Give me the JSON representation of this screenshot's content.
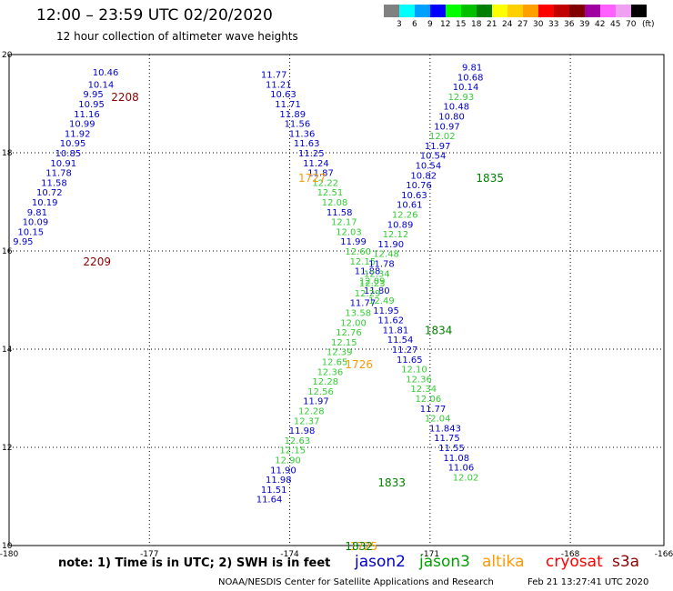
{
  "title": "12:00 – 23:59 UTC 02/20/2020",
  "subtitle": "12 hour collection of altimeter wave heights",
  "legend": {
    "units": "(ft)",
    "labels": [
      "3",
      "6",
      "9",
      "12",
      "15",
      "18",
      "21",
      "24",
      "27",
      "30",
      "33",
      "36",
      "39",
      "42",
      "45",
      "70"
    ],
    "colors": [
      "#808080",
      "#00ffff",
      "#00a0ff",
      "#0000ff",
      "#00ff00",
      "#00c000",
      "#008000",
      "#ffff00",
      "#ffd000",
      "#ffa000",
      "#ff0000",
      "#c00000",
      "#800000",
      "#a000a0",
      "#ff60ff",
      "#f0a0f0",
      "#000000"
    ]
  },
  "satellites": [
    {
      "name": "jason2",
      "color": "#0000c8"
    },
    {
      "name": "jason3",
      "color": "#00a000"
    },
    {
      "name": "altika",
      "color": "#ff9900"
    },
    {
      "name": "cryosat",
      "color": "#ff0000"
    },
    {
      "name": "s3a",
      "color": "#8b0000"
    }
  ],
  "footer": {
    "note": "note: 1) Time is in UTC; 2) SWH is in feet",
    "credit": "NOAA/NESDIS Center for Satellite Applications and Research",
    "date": "Feb 21 13:27:41 UTC 2020"
  },
  "chart_data": {
    "type": "scatter",
    "xlim": [
      -180,
      -166
    ],
    "ylim": [
      10,
      20
    ],
    "x_ticks": [
      "-180",
      "-177",
      "-174",
      "-171",
      "-168",
      "-166"
    ],
    "y_ticks": [
      "20",
      "18",
      "16",
      "14",
      "12",
      "10"
    ],
    "grid": true,
    "passes": [
      {
        "id": "2208",
        "satellite": "s3a",
        "color": "#8b0000",
        "label_x": -178.4,
        "label_y": 19.15
      },
      {
        "id": "2209",
        "satellite": "s3a",
        "color": "#8b0000",
        "label_x": -179.0,
        "label_y": 15.8
      },
      {
        "id": "1727",
        "satellite": "altika",
        "color": "#ff9900",
        "label_x": -174.4,
        "label_y": 17.5
      },
      {
        "id": "1726",
        "satellite": "altika",
        "color": "#ff9900",
        "label_x": -173.4,
        "label_y": 13.7
      },
      {
        "id": "1725",
        "satellite": "altika",
        "color": "#ff9900",
        "label_x": -173.3,
        "label_y": 10.0
      },
      {
        "id": "1835",
        "satellite": "jason3",
        "color": "#008000",
        "label_x": -170.6,
        "label_y": 17.5
      },
      {
        "id": "1834",
        "satellite": "jason3",
        "color": "#008000",
        "label_x": -171.7,
        "label_y": 14.4
      },
      {
        "id": "1833",
        "satellite": "jason3",
        "color": "#008000",
        "label_x": -172.7,
        "label_y": 11.3
      },
      {
        "id": "1832",
        "satellite": "jason3",
        "color": "#008000",
        "label_x": -173.4,
        "label_y": 10.0
      }
    ],
    "series": [
      {
        "name": "2208/2209",
        "color": "#0000cd",
        "points": [
          [
            -178.8,
            19.65,
            "10.46"
          ],
          [
            -178.9,
            19.4,
            "10.14"
          ],
          [
            -179.0,
            19.2,
            "9.95"
          ],
          [
            -179.1,
            19.0,
            "10.95"
          ],
          [
            -179.2,
            18.8,
            "11.16"
          ],
          [
            -179.3,
            18.6,
            "10.99"
          ],
          [
            -179.4,
            18.4,
            "11.92"
          ],
          [
            -179.5,
            18.2,
            "10.95"
          ],
          [
            -179.6,
            18.0,
            "10.85"
          ],
          [
            -179.7,
            17.8,
            "10.91"
          ],
          [
            -179.8,
            17.6,
            "11.78"
          ],
          [
            -179.9,
            17.4,
            "11.58"
          ],
          [
            -180.0,
            17.2,
            "10.72"
          ],
          [
            -180.1,
            17.0,
            "10.19"
          ],
          [
            -180.2,
            16.8,
            "9.81"
          ],
          [
            -180.3,
            16.6,
            "10.09"
          ],
          [
            -180.4,
            16.4,
            "10.15"
          ],
          [
            -180.5,
            16.2,
            "9.95"
          ]
        ]
      },
      {
        "name": "1727/1726",
        "color": "#0000cd",
        "points": [
          [
            -175.2,
            19.6,
            "11.77"
          ],
          [
            -175.1,
            19.4,
            "11.21"
          ],
          [
            -175.0,
            19.2,
            "10.63"
          ],
          [
            -174.9,
            19.0,
            "11.71"
          ],
          [
            -174.8,
            18.8,
            "11.89"
          ],
          [
            -174.7,
            18.6,
            "11.56"
          ],
          [
            -174.6,
            18.4,
            "11.36"
          ],
          [
            -174.5,
            18.2,
            "11.63"
          ],
          [
            -174.4,
            18.0,
            "11.25"
          ],
          [
            -174.3,
            17.8,
            "11.24"
          ],
          [
            -174.2,
            17.6,
            "11.87"
          ],
          [
            -174.1,
            17.4,
            "12.22"
          ],
          [
            -174.0,
            17.2,
            "12.51"
          ],
          [
            -173.9,
            17.0,
            "12.08"
          ],
          [
            -173.8,
            16.8,
            "11.58"
          ],
          [
            -173.7,
            16.6,
            "12.17"
          ],
          [
            -173.6,
            16.4,
            "12.03"
          ],
          [
            -173.5,
            16.2,
            "11.99"
          ],
          [
            -173.4,
            16.0,
            "12.60"
          ],
          [
            -173.3,
            15.8,
            "12.15"
          ],
          [
            -173.2,
            15.6,
            "11.88"
          ],
          [
            -173.1,
            15.4,
            "12.09"
          ],
          [
            -173.0,
            15.2,
            "11.80"
          ],
          [
            -172.9,
            15.0,
            "12.49"
          ],
          [
            -172.8,
            14.8,
            "11.95"
          ],
          [
            -172.7,
            14.6,
            "11.62"
          ],
          [
            -172.6,
            14.4,
            "11.81"
          ],
          [
            -172.5,
            14.2,
            "11.54"
          ],
          [
            -172.4,
            14.0,
            "11.27"
          ],
          [
            -172.3,
            13.8,
            "11.65"
          ],
          [
            -172.2,
            13.6,
            "12.10"
          ],
          [
            -172.1,
            13.4,
            "12.36"
          ],
          [
            -172.0,
            13.2,
            "12.34"
          ],
          [
            -171.9,
            13.0,
            "12.06"
          ],
          [
            -171.8,
            12.8,
            "11.77"
          ],
          [
            -171.7,
            12.6,
            "12.04"
          ],
          [
            -171.6,
            12.4,
            "11.843"
          ],
          [
            -171.5,
            12.2,
            "11.75"
          ],
          [
            -171.4,
            12.0,
            "11.55"
          ],
          [
            -171.3,
            11.8,
            "11.08"
          ],
          [
            -171.2,
            11.6,
            "11.06"
          ],
          [
            -171.1,
            11.4,
            "12.02"
          ]
        ]
      },
      {
        "name": "1835/1834/1833",
        "color": "#0000cd",
        "points": [
          [
            -170.9,
            19.75,
            "9.81"
          ],
          [
            -171.0,
            19.55,
            "10.68"
          ],
          [
            -171.1,
            19.35,
            "10.14"
          ],
          [
            -171.2,
            19.15,
            "12.93"
          ],
          [
            -171.3,
            18.95,
            "10.48"
          ],
          [
            -171.4,
            18.75,
            "10.80"
          ],
          [
            -171.5,
            18.55,
            "10.97"
          ],
          [
            -171.6,
            18.35,
            "12.02"
          ],
          [
            -171.7,
            18.15,
            "11.97"
          ],
          [
            -171.8,
            17.95,
            "10.54"
          ],
          [
            -171.9,
            17.75,
            "10.54"
          ],
          [
            -172.0,
            17.55,
            "10.82"
          ],
          [
            -172.1,
            17.35,
            "10.76"
          ],
          [
            -172.2,
            17.15,
            "10.63"
          ],
          [
            -172.3,
            16.95,
            "10.61"
          ],
          [
            -172.4,
            16.75,
            "12.26"
          ],
          [
            -172.5,
            16.55,
            "10.89"
          ],
          [
            -172.6,
            16.35,
            "12.12"
          ],
          [
            -172.7,
            16.15,
            "11.90"
          ],
          [
            -172.8,
            15.95,
            "12.48"
          ],
          [
            -172.9,
            15.75,
            "11.78"
          ],
          [
            -173.0,
            15.55,
            "12.34"
          ],
          [
            -173.1,
            15.35,
            "12.23"
          ],
          [
            -173.2,
            15.15,
            "12.29"
          ],
          [
            -173.3,
            14.95,
            "11.77"
          ],
          [
            -173.4,
            14.75,
            "13.58"
          ],
          [
            -173.5,
            14.55,
            "12.00"
          ],
          [
            -173.6,
            14.35,
            "12.76"
          ],
          [
            -173.7,
            14.15,
            "12.15"
          ],
          [
            -173.8,
            13.95,
            "12.39"
          ],
          [
            -173.9,
            13.75,
            "12.65"
          ],
          [
            -174.0,
            13.55,
            "12.36"
          ],
          [
            -174.1,
            13.35,
            "12.28"
          ],
          [
            -174.2,
            13.15,
            "12.56"
          ],
          [
            -174.3,
            12.95,
            "11.97"
          ],
          [
            -174.4,
            12.75,
            "12.28"
          ],
          [
            -174.5,
            12.55,
            "12.37"
          ],
          [
            -174.6,
            12.35,
            "11.98"
          ],
          [
            -174.7,
            12.15,
            "12.63"
          ],
          [
            -174.8,
            11.95,
            "12.15"
          ],
          [
            -174.9,
            11.75,
            "12.90"
          ],
          [
            -175.0,
            11.55,
            "11.90"
          ],
          [
            -175.1,
            11.35,
            "11.98"
          ],
          [
            -175.2,
            11.15,
            "11.51"
          ],
          [
            -175.3,
            10.95,
            "11.64"
          ]
        ]
      }
    ]
  }
}
